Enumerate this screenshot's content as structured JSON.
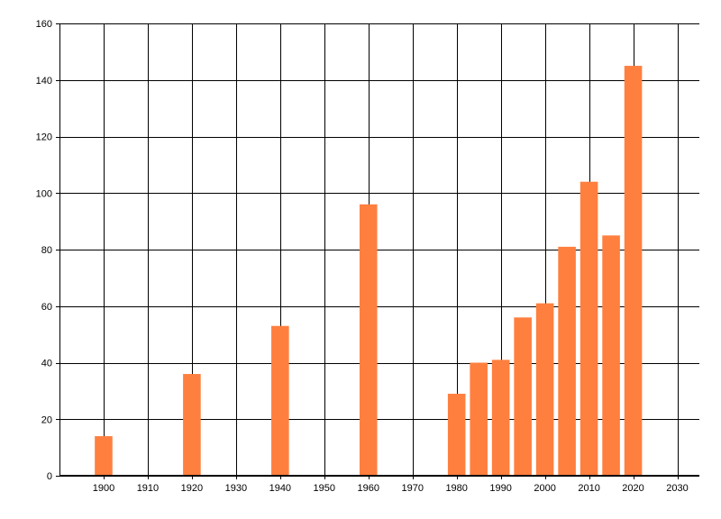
{
  "chart_data": {
    "type": "bar",
    "title": "",
    "xlabel": "",
    "ylabel": "",
    "x": [
      1900,
      1920,
      1940,
      1960,
      1980,
      1985,
      1990,
      1995,
      2000,
      2005,
      2010,
      2015,
      2020
    ],
    "values": [
      14,
      36,
      53,
      96,
      29,
      40,
      41,
      56,
      61,
      81,
      104,
      85,
      145
    ],
    "xlim": [
      1890,
      2035
    ],
    "ylim": [
      0,
      160
    ],
    "x_ticks": [
      1900,
      1910,
      1920,
      1930,
      1940,
      1950,
      1960,
      1970,
      1980,
      1990,
      2000,
      2010,
      2020,
      2030
    ],
    "y_ticks": [
      0,
      20,
      40,
      60,
      80,
      100,
      120,
      140,
      160
    ],
    "bar_width_years": 4,
    "bar_color": "#FF7F3F",
    "grid": true,
    "legend": "none"
  }
}
